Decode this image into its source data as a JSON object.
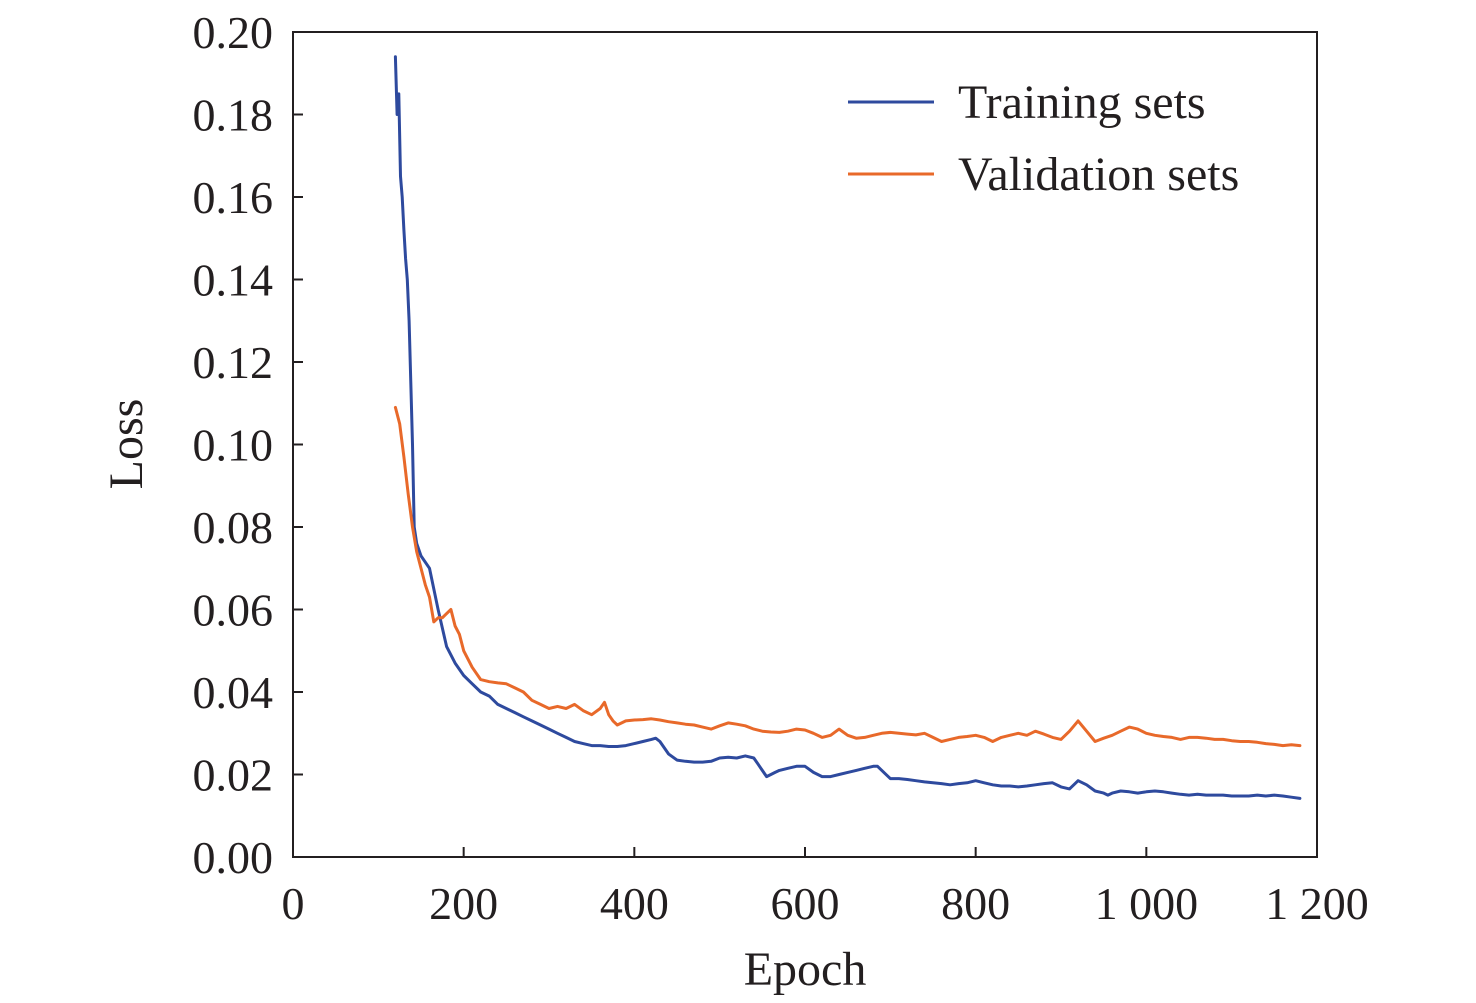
{
  "chart_data": {
    "type": "line",
    "xlabel": "Epoch",
    "ylabel": "Loss",
    "xlim": [
      0,
      1200
    ],
    "ylim": [
      0,
      0.2
    ],
    "x_ticks": [
      0,
      200,
      400,
      600,
      800,
      1000,
      1200
    ],
    "x_tick_labels": [
      "0",
      "200",
      "400",
      "600",
      "800",
      "1 000",
      "1 200"
    ],
    "y_ticks": [
      0,
      0.02,
      0.04,
      0.06,
      0.08,
      0.1,
      0.12,
      0.14,
      0.16,
      0.18,
      0.2
    ],
    "y_tick_labels": [
      "0.00",
      "0.02",
      "0.04",
      "0.06",
      "0.08",
      "0.10",
      "0.12",
      "0.14",
      "0.16",
      "0.18",
      "0.20"
    ],
    "legend_position": "top-right",
    "grid": false,
    "series": [
      {
        "name": "Training sets",
        "color": "#2e4a9e",
        "x": [
          120,
          122,
          124,
          126,
          128,
          130,
          132,
          134,
          136,
          138,
          140,
          142,
          145,
          150,
          160,
          170,
          180,
          190,
          200,
          210,
          220,
          230,
          240,
          250,
          260,
          270,
          280,
          290,
          300,
          310,
          320,
          330,
          340,
          350,
          360,
          370,
          380,
          390,
          400,
          410,
          420,
          425,
          430,
          440,
          450,
          460,
          470,
          480,
          490,
          500,
          510,
          520,
          530,
          540,
          545,
          550,
          555,
          560,
          565,
          570,
          580,
          590,
          600,
          610,
          620,
          630,
          640,
          650,
          660,
          670,
          680,
          685,
          690,
          700,
          710,
          720,
          730,
          740,
          750,
          760,
          770,
          780,
          790,
          800,
          810,
          820,
          830,
          840,
          850,
          860,
          870,
          880,
          890,
          900,
          910,
          920,
          930,
          940,
          950,
          955,
          960,
          970,
          980,
          990,
          1000,
          1010,
          1020,
          1030,
          1040,
          1050,
          1060,
          1070,
          1080,
          1090,
          1100,
          1110,
          1120,
          1130,
          1140,
          1150,
          1160,
          1170,
          1180
        ],
        "values": [
          0.194,
          0.18,
          0.185,
          0.165,
          0.16,
          0.152,
          0.145,
          0.14,
          0.13,
          0.115,
          0.1,
          0.08,
          0.076,
          0.073,
          0.07,
          0.06,
          0.051,
          0.047,
          0.044,
          0.042,
          0.04,
          0.039,
          0.037,
          0.036,
          0.035,
          0.034,
          0.033,
          0.032,
          0.031,
          0.03,
          0.029,
          0.028,
          0.0275,
          0.027,
          0.027,
          0.0268,
          0.0268,
          0.027,
          0.0275,
          0.028,
          0.0285,
          0.0288,
          0.028,
          0.025,
          0.0235,
          0.0232,
          0.023,
          0.023,
          0.0232,
          0.024,
          0.0242,
          0.024,
          0.0245,
          0.024,
          0.0225,
          0.021,
          0.0195,
          0.02,
          0.0205,
          0.021,
          0.0215,
          0.022,
          0.022,
          0.0205,
          0.0195,
          0.0195,
          0.02,
          0.0205,
          0.021,
          0.0215,
          0.022,
          0.022,
          0.021,
          0.019,
          0.019,
          0.0188,
          0.0185,
          0.0182,
          0.018,
          0.0178,
          0.0175,
          0.0178,
          0.018,
          0.0185,
          0.018,
          0.0175,
          0.0172,
          0.0172,
          0.017,
          0.0172,
          0.0175,
          0.0178,
          0.018,
          0.017,
          0.0165,
          0.0185,
          0.0175,
          0.016,
          0.0155,
          0.015,
          0.0155,
          0.016,
          0.0158,
          0.0155,
          0.0158,
          0.016,
          0.0158,
          0.0155,
          0.0152,
          0.015,
          0.0152,
          0.015,
          0.015,
          0.015,
          0.0148,
          0.0148,
          0.0148,
          0.015,
          0.0148,
          0.015,
          0.0148,
          0.0145,
          0.0142
        ]
      },
      {
        "name": "Validation sets",
        "color": "#e8692a",
        "x": [
          120,
          125,
          130,
          135,
          140,
          145,
          150,
          155,
          160,
          165,
          170,
          175,
          180,
          185,
          190,
          195,
          200,
          210,
          220,
          230,
          240,
          250,
          260,
          270,
          280,
          290,
          300,
          310,
          320,
          330,
          340,
          350,
          360,
          365,
          370,
          375,
          380,
          390,
          400,
          410,
          420,
          430,
          440,
          450,
          460,
          470,
          480,
          490,
          500,
          510,
          520,
          530,
          540,
          550,
          560,
          570,
          580,
          590,
          600,
          610,
          620,
          630,
          640,
          650,
          660,
          670,
          680,
          690,
          700,
          710,
          720,
          730,
          740,
          750,
          760,
          770,
          780,
          790,
          800,
          810,
          820,
          830,
          840,
          850,
          860,
          870,
          880,
          890,
          900,
          910,
          920,
          930,
          940,
          950,
          960,
          970,
          980,
          990,
          1000,
          1010,
          1020,
          1030,
          1040,
          1050,
          1060,
          1070,
          1080,
          1090,
          1100,
          1110,
          1120,
          1130,
          1140,
          1150,
          1160,
          1170,
          1180
        ],
        "values": [
          0.109,
          0.105,
          0.097,
          0.088,
          0.08,
          0.074,
          0.07,
          0.066,
          0.063,
          0.057,
          0.058,
          0.058,
          0.059,
          0.06,
          0.056,
          0.054,
          0.05,
          0.046,
          0.043,
          0.0425,
          0.0422,
          0.042,
          0.041,
          0.04,
          0.038,
          0.037,
          0.036,
          0.0365,
          0.036,
          0.037,
          0.0355,
          0.0345,
          0.036,
          0.0375,
          0.0345,
          0.033,
          0.032,
          0.033,
          0.0332,
          0.0333,
          0.0335,
          0.0332,
          0.0328,
          0.0325,
          0.0322,
          0.032,
          0.0315,
          0.031,
          0.0318,
          0.0325,
          0.0322,
          0.0318,
          0.031,
          0.0305,
          0.0303,
          0.0302,
          0.0305,
          0.031,
          0.0308,
          0.03,
          0.029,
          0.0295,
          0.031,
          0.0295,
          0.0288,
          0.029,
          0.0295,
          0.03,
          0.0302,
          0.03,
          0.0298,
          0.0296,
          0.03,
          0.029,
          0.028,
          0.0285,
          0.029,
          0.0292,
          0.0295,
          0.029,
          0.028,
          0.029,
          0.0295,
          0.03,
          0.0295,
          0.0305,
          0.0298,
          0.029,
          0.0285,
          0.0305,
          0.033,
          0.0305,
          0.028,
          0.0288,
          0.0295,
          0.0305,
          0.0315,
          0.031,
          0.03,
          0.0295,
          0.0292,
          0.029,
          0.0285,
          0.029,
          0.029,
          0.0288,
          0.0285,
          0.0285,
          0.0282,
          0.028,
          0.028,
          0.0278,
          0.0275,
          0.0273,
          0.027,
          0.0272,
          0.027
        ]
      }
    ]
  }
}
